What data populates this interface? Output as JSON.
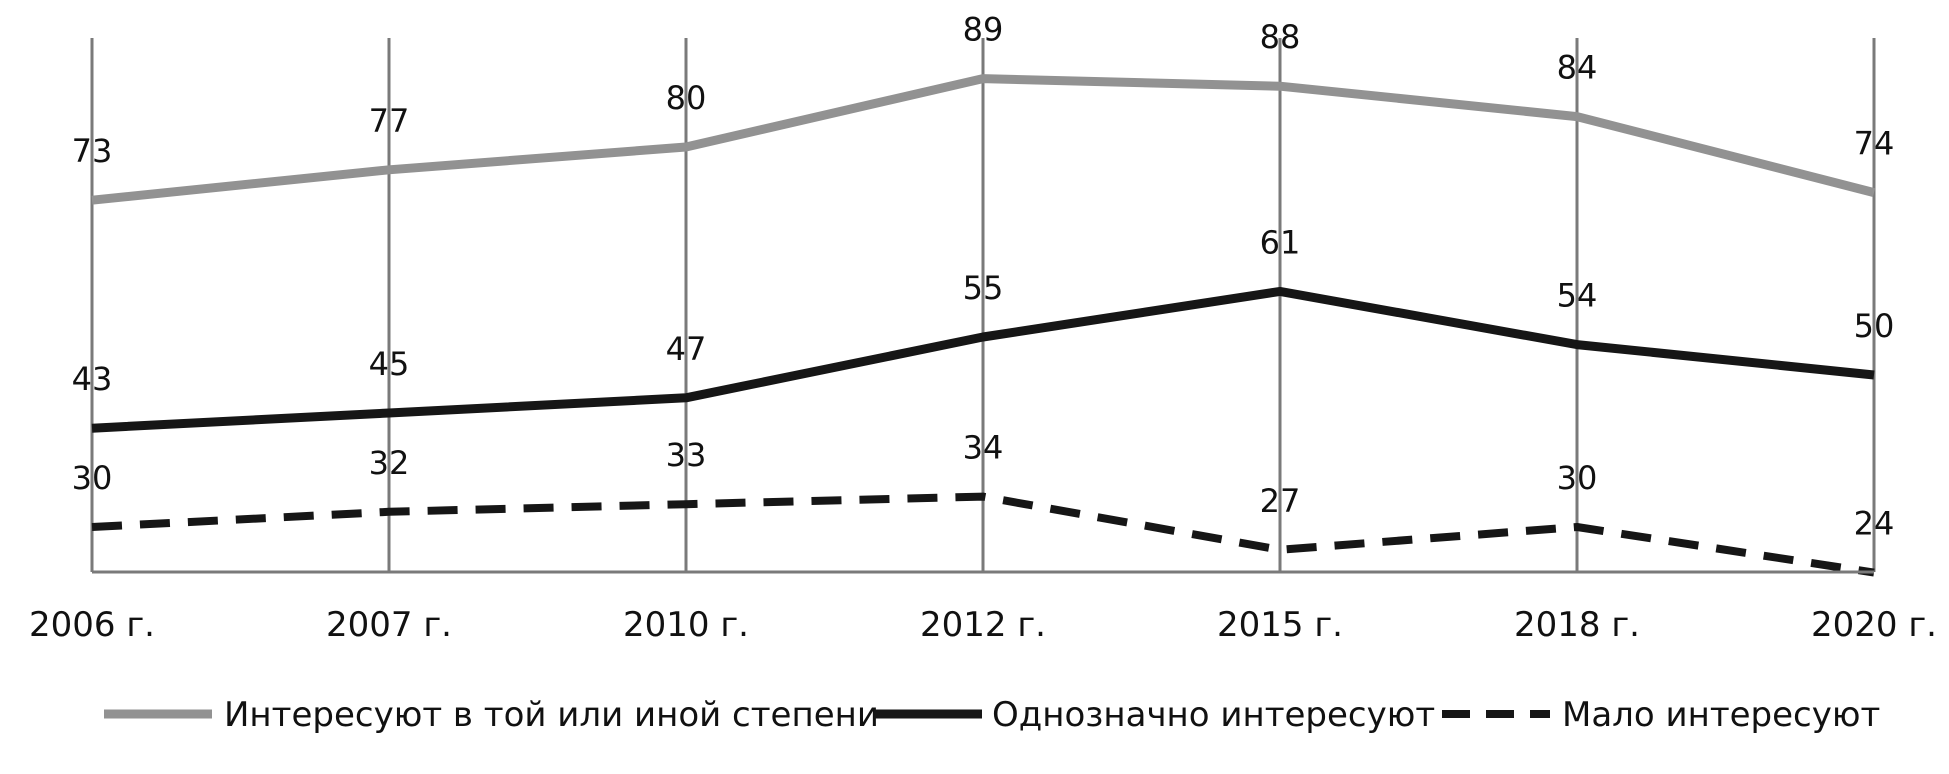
{
  "chart_data": {
    "type": "line",
    "categories": [
      "2006 г.",
      "2007 г.",
      "2010 г.",
      "2012 г.",
      "2015 г.",
      "2018 г.",
      "2020 г."
    ],
    "series": [
      {
        "name": "Интересуют в той или иной степени",
        "values": [
          73,
          77,
          80,
          89,
          88,
          84,
          74
        ],
        "color": "#929292",
        "dash": "solid"
      },
      {
        "name": "Однозначно интересуют",
        "values": [
          43,
          45,
          47,
          55,
          61,
          54,
          50
        ],
        "color": "#161616",
        "dash": "solid"
      },
      {
        "name": "Мало интересуют",
        "values": [
          30,
          32,
          33,
          34,
          27,
          30,
          24
        ],
        "color": "#161616",
        "dash": "dashed"
      }
    ],
    "ylim": [
      0,
      100
    ],
    "grid": "vertical",
    "legend": "bottom"
  }
}
